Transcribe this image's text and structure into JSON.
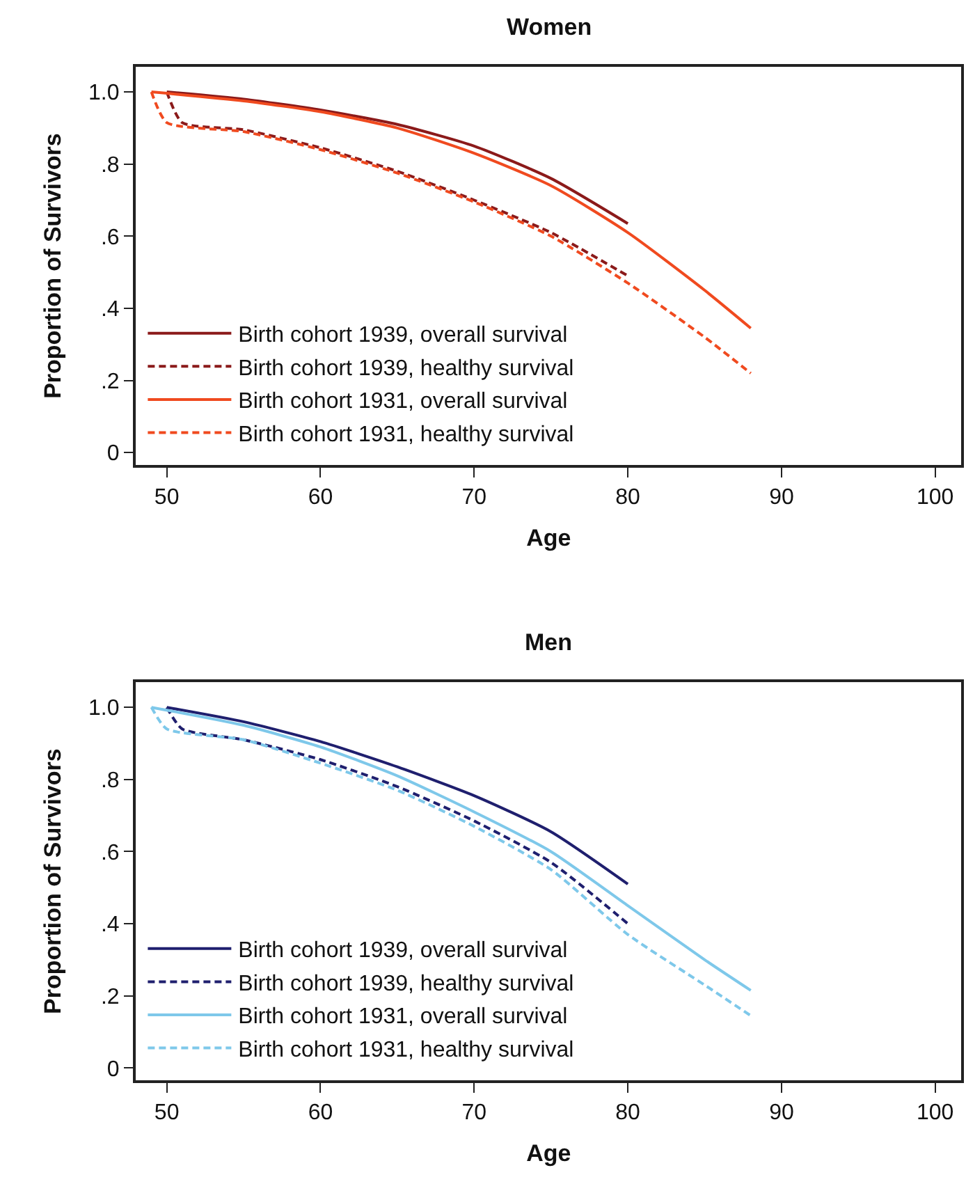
{
  "chart_data": [
    {
      "type": "line",
      "title": "Women",
      "xlabel": "Age",
      "ylabel": "Proportion of Survivors",
      "xlim": [
        48,
        101.7
      ],
      "ylim": [
        -0.035,
        1.07
      ],
      "xticks": [
        50,
        60,
        70,
        80,
        90,
        100
      ],
      "yticks": [
        {
          "value": 0,
          "label": "0"
        },
        {
          "value": 0.2,
          "label": ".2"
        },
        {
          "value": 0.4,
          "label": ".4"
        },
        {
          "value": 0.6,
          "label": ".6"
        },
        {
          "value": 0.8,
          "label": ".8"
        },
        {
          "value": 1.0,
          "label": "1.0"
        }
      ],
      "grid": false,
      "legend": "bottom left",
      "marker": "none",
      "series": [
        {
          "name": "Birth cohort 1939, overall survival",
          "color": "#8b1a1a",
          "line_style": "solid",
          "x": [
            50,
            55,
            60,
            65,
            70,
            75,
            80
          ],
          "values": [
            1.0,
            0.98,
            0.95,
            0.91,
            0.85,
            0.76,
            0.635
          ]
        },
        {
          "name": "Birth cohort 1939, healthy survival",
          "color": "#8b1a1a",
          "line_style": "dashed",
          "x": [
            50,
            51,
            55,
            60,
            65,
            70,
            75,
            80
          ],
          "values": [
            1.0,
            0.915,
            0.895,
            0.845,
            0.78,
            0.7,
            0.61,
            0.49
          ]
        },
        {
          "name": "Birth cohort 1931, overall survival",
          "color": "#f04a1f",
          "line_style": "solid",
          "x": [
            49,
            55,
            60,
            65,
            70,
            75,
            80,
            85,
            88
          ],
          "values": [
            1.0,
            0.975,
            0.945,
            0.9,
            0.83,
            0.74,
            0.61,
            0.45,
            0.345
          ]
        },
        {
          "name": "Birth cohort 1931, healthy survival",
          "color": "#f04a1f",
          "line_style": "dashed",
          "x": [
            49,
            50,
            55,
            60,
            65,
            70,
            75,
            80,
            85,
            88
          ],
          "values": [
            1.0,
            0.915,
            0.89,
            0.84,
            0.775,
            0.695,
            0.6,
            0.47,
            0.32,
            0.22
          ]
        }
      ]
    },
    {
      "type": "line",
      "title": "Men",
      "xlabel": "Age",
      "ylabel": "Proportion of Survivors",
      "xlim": [
        48,
        101.7
      ],
      "ylim": [
        -0.035,
        1.07
      ],
      "xticks": [
        50,
        60,
        70,
        80,
        90,
        100
      ],
      "yticks": [
        {
          "value": 0,
          "label": "0"
        },
        {
          "value": 0.2,
          "label": ".2"
        },
        {
          "value": 0.4,
          "label": ".4"
        },
        {
          "value": 0.6,
          "label": ".6"
        },
        {
          "value": 0.8,
          "label": ".8"
        },
        {
          "value": 1.0,
          "label": "1.0"
        }
      ],
      "grid": false,
      "legend": "bottom left",
      "marker": "none",
      "series": [
        {
          "name": "Birth cohort 1939, overall survival",
          "color": "#1f1f6e",
          "line_style": "solid",
          "x": [
            50,
            55,
            60,
            65,
            70,
            75,
            80
          ],
          "values": [
            1.0,
            0.96,
            0.905,
            0.835,
            0.755,
            0.655,
            0.51
          ]
        },
        {
          "name": "Birth cohort 1939, healthy survival",
          "color": "#1f1f6e",
          "line_style": "dashed",
          "x": [
            50,
            51,
            55,
            60,
            65,
            70,
            75,
            80
          ],
          "values": [
            1.0,
            0.94,
            0.91,
            0.855,
            0.78,
            0.685,
            0.57,
            0.4
          ]
        },
        {
          "name": "Birth cohort 1931, overall survival",
          "color": "#7ec8ea",
          "line_style": "solid",
          "x": [
            49,
            55,
            60,
            65,
            70,
            75,
            80,
            85,
            88
          ],
          "values": [
            1.0,
            0.95,
            0.89,
            0.81,
            0.71,
            0.6,
            0.45,
            0.3,
            0.215
          ]
        },
        {
          "name": "Birth cohort 1931, healthy survival",
          "color": "#7ec8ea",
          "line_style": "dashed",
          "x": [
            49,
            50,
            55,
            60,
            65,
            70,
            75,
            80,
            85,
            88
          ],
          "values": [
            1.0,
            0.94,
            0.91,
            0.845,
            0.77,
            0.67,
            0.55,
            0.37,
            0.23,
            0.145
          ]
        }
      ]
    }
  ]
}
